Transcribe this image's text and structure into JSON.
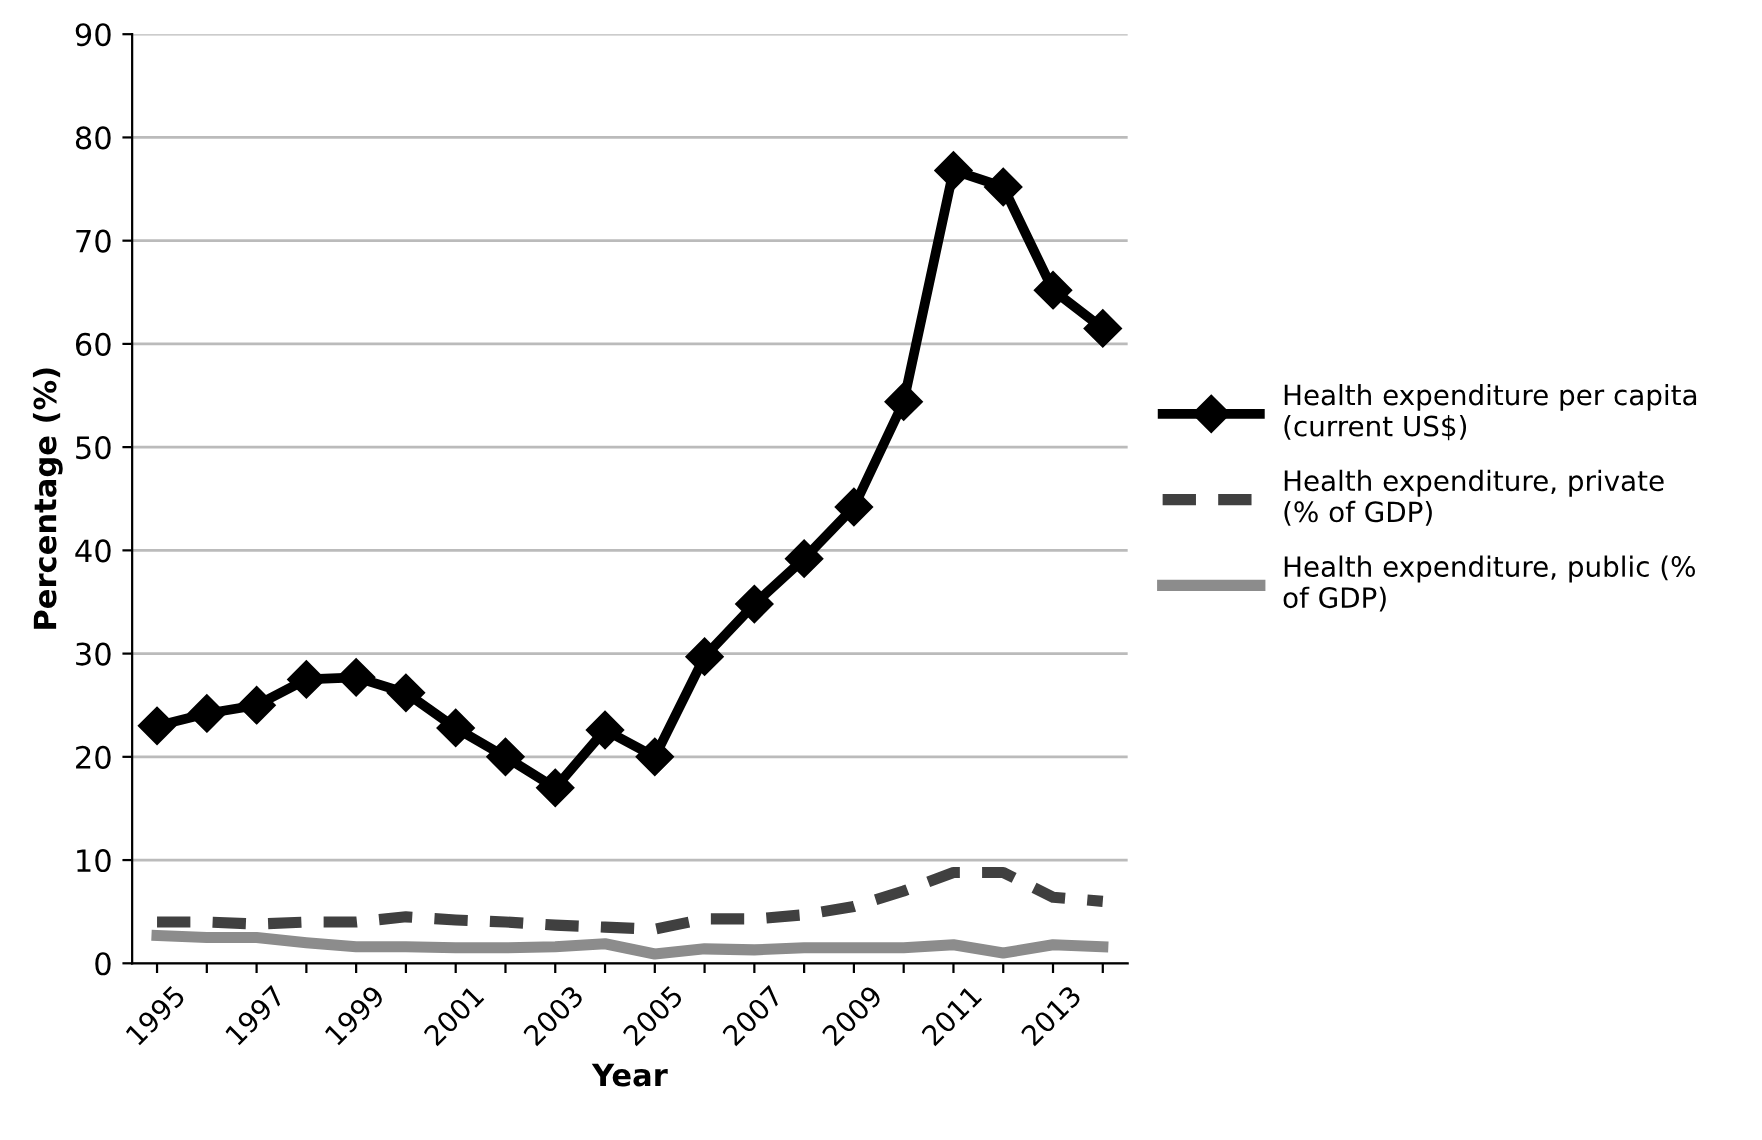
{
  "chart_data": {
    "type": "line",
    "xlabel": "Year",
    "ylabel": "Percentage (%)",
    "categories": [
      "1995",
      null,
      "1997",
      null,
      "1999",
      null,
      "2001",
      null,
      "2003",
      null,
      "2005",
      null,
      "2007",
      null,
      "2009",
      null,
      "2011",
      null,
      "2013",
      null
    ],
    "series": [
      {
        "name": "Health expenditure per capita\n(current US$)",
        "color": "#000000",
        "marker": "diamond",
        "line_style": "solid",
        "values": [
          23,
          24.2,
          25,
          27.5,
          27.7,
          26.2,
          22.8,
          20,
          17,
          22.6,
          20,
          29.7,
          34.8,
          39.2,
          44.2,
          54.4,
          76.8,
          75.2,
          65.2,
          61.5
        ]
      },
      {
        "name": "Health expenditure, private\n(% of GDP)",
        "color": "#404040",
        "marker": "none",
        "line_style": "dashed",
        "values": [
          4,
          4,
          3.8,
          4,
          4,
          4.5,
          4.2,
          4,
          3.7,
          3.5,
          3.3,
          4.3,
          4.3,
          4.7,
          5.5,
          7,
          8.8,
          8.8,
          6.4,
          6
        ]
      },
      {
        "name": "Health expenditure, public (%\nof GDP)",
        "color": "#8c8c8c",
        "marker": "none",
        "line_style": "solid",
        "values": [
          2.7,
          2.5,
          2.5,
          2,
          1.6,
          1.6,
          1.5,
          1.5,
          1.6,
          1.9,
          0.9,
          1.4,
          1.3,
          1.5,
          1.5,
          1.5,
          1.8,
          1,
          1.8,
          1.6
        ]
      }
    ],
    "ylim": [
      0,
      90
    ],
    "yticks": [
      0,
      10,
      20,
      30,
      40,
      50,
      60,
      70,
      80,
      90
    ],
    "grid": "y",
    "legend": "right"
  }
}
